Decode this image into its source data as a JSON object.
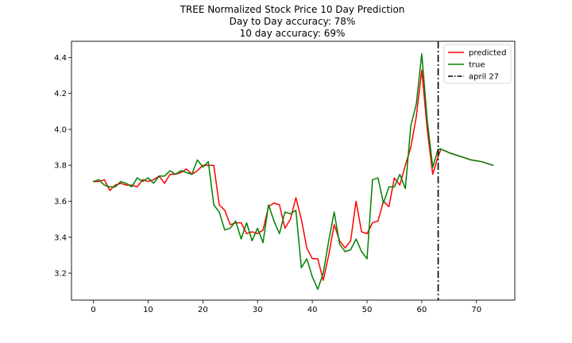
{
  "chart_data": {
    "type": "line",
    "title_lines": [
      "TREE Normalized Stock Price 10 Day Prediction",
      "Day to Day accuracy: 78%",
      "10 day accuracy: 69%"
    ],
    "xlabel": "",
    "ylabel": "",
    "xlim": [
      -4,
      77
    ],
    "ylim": [
      3.05,
      4.49
    ],
    "xticks": [
      0,
      10,
      20,
      30,
      40,
      50,
      60,
      70
    ],
    "xtick_labels": [
      "0",
      "10",
      "20",
      "30",
      "40",
      "50",
      "60",
      "70"
    ],
    "yticks": [
      3.2,
      3.4,
      3.6,
      3.8,
      4.0,
      4.2,
      4.4
    ],
    "ytick_labels": [
      "3.2",
      "3.4",
      "3.6",
      "3.8",
      "4.0",
      "4.2",
      "4.4"
    ],
    "grid": false,
    "legend_position": "top-right",
    "series": [
      {
        "name": "predicted",
        "color": "#ff0000",
        "x": [
          0,
          1,
          2,
          3,
          4,
          5,
          6,
          7,
          8,
          9,
          10,
          11,
          12,
          13,
          14,
          15,
          16,
          17,
          18,
          19,
          20,
          21,
          22,
          23,
          24,
          25,
          26,
          27,
          28,
          29,
          30,
          31,
          32,
          33,
          34,
          35,
          36,
          37,
          38,
          39,
          40,
          41,
          42,
          43,
          44,
          45,
          46,
          47,
          48,
          49,
          50,
          51,
          52,
          53,
          54,
          55,
          56,
          57,
          58,
          59,
          60,
          61,
          62,
          63,
          63.5,
          65,
          67,
          69,
          71,
          73
        ],
        "values": [
          3.71,
          3.71,
          3.72,
          3.66,
          3.69,
          3.7,
          3.69,
          3.69,
          3.68,
          3.72,
          3.71,
          3.72,
          3.74,
          3.7,
          3.75,
          3.75,
          3.76,
          3.78,
          3.75,
          3.77,
          3.8,
          3.8,
          3.8,
          3.58,
          3.55,
          3.47,
          3.48,
          3.48,
          3.42,
          3.43,
          3.42,
          3.44,
          3.57,
          3.59,
          3.58,
          3.45,
          3.5,
          3.62,
          3.5,
          3.34,
          3.28,
          3.28,
          3.16,
          3.3,
          3.47,
          3.38,
          3.34,
          3.38,
          3.6,
          3.43,
          3.42,
          3.48,
          3.49,
          3.6,
          3.57,
          3.73,
          3.69,
          3.8,
          3.9,
          4.07,
          4.33,
          4.0,
          3.75,
          3.85,
          3.89,
          3.87,
          3.85,
          3.83,
          3.82,
          3.8
        ]
      },
      {
        "name": "true",
        "color": "#008000",
        "x": [
          0,
          1,
          2,
          3,
          4,
          5,
          6,
          7,
          8,
          9,
          10,
          11,
          12,
          13,
          14,
          15,
          16,
          17,
          18,
          19,
          20,
          21,
          22,
          23,
          24,
          25,
          26,
          27,
          28,
          29,
          30,
          31,
          32,
          33,
          34,
          35,
          36,
          37,
          38,
          39,
          40,
          41,
          42,
          43,
          44,
          45,
          46,
          47,
          48,
          49,
          50,
          51,
          52,
          53,
          54,
          55,
          56,
          57,
          58,
          59,
          60,
          61,
          62,
          63,
          63.5,
          65,
          67,
          69,
          71,
          73
        ],
        "values": [
          3.71,
          3.72,
          3.69,
          3.68,
          3.68,
          3.71,
          3.7,
          3.68,
          3.73,
          3.71,
          3.73,
          3.7,
          3.74,
          3.74,
          3.77,
          3.75,
          3.77,
          3.76,
          3.75,
          3.83,
          3.79,
          3.82,
          3.58,
          3.54,
          3.44,
          3.45,
          3.49,
          3.39,
          3.48,
          3.38,
          3.45,
          3.37,
          3.58,
          3.49,
          3.42,
          3.54,
          3.53,
          3.55,
          3.23,
          3.28,
          3.18,
          3.11,
          3.2,
          3.38,
          3.54,
          3.36,
          3.32,
          3.33,
          3.39,
          3.32,
          3.28,
          3.72,
          3.73,
          3.59,
          3.68,
          3.68,
          3.75,
          3.67,
          4.02,
          4.14,
          4.42,
          4.05,
          3.79,
          3.89,
          3.89,
          3.87,
          3.85,
          3.83,
          3.82,
          3.8
        ]
      }
    ],
    "vline": {
      "name": "april 27",
      "x": 63,
      "color": "#000000",
      "style": "dash-dot"
    },
    "legend": [
      "predicted",
      "true",
      "april 27"
    ]
  }
}
